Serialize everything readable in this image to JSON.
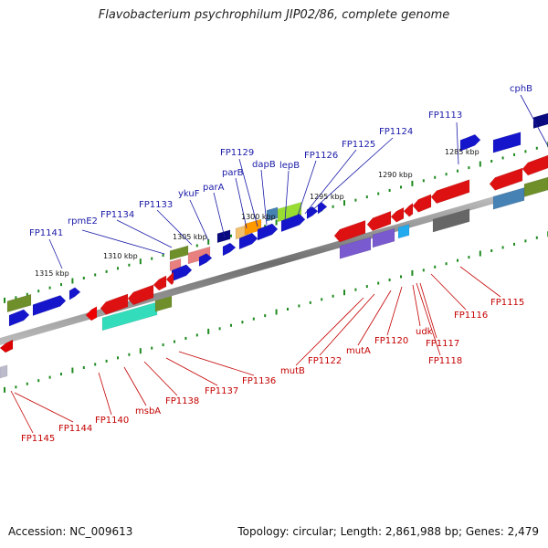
{
  "title": "Flavobacterium psychrophilum JIP02/86, complete genome",
  "footer": {
    "accession": "Accession: NC_009613",
    "summary": "Topology: circular; Length: 2,861,988 bp; Genes: 2,479"
  },
  "colors": {
    "forward_label": "#1a1aa8",
    "reverse_label": "#c40000",
    "backbone": "#8a8a8a",
    "tick": "#1f8a1f"
  },
  "scale_labels": [
    "1315 kbp",
    "1310 kbp",
    "1305 kbp",
    "1300 kbp",
    "1295 kbp",
    "1290 kbp",
    "1285 kbp"
  ],
  "forward_genes": [
    "FP1141",
    "rpmE2",
    "FP1134",
    "FP1133",
    "ykuF",
    "parA",
    "parB",
    "FP1129",
    "dapB",
    "lepB",
    "FP1126",
    "FP1125",
    "FP1124",
    "FP1113",
    "cphB"
  ],
  "reverse_genes": [
    "FP1145",
    "FP1144",
    "FP1140",
    "msbA",
    "FP1138",
    "FP1137",
    "FP1136",
    "mutB",
    "FP1122",
    "mutA",
    "FP1120",
    "udk",
    "FP1117",
    "FP1118",
    "FP1116",
    "FP1115"
  ]
}
